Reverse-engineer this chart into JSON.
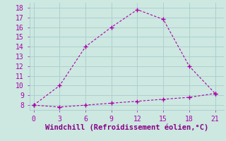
{
  "line1_x": [
    0,
    3,
    6,
    9,
    12,
    15,
    18,
    21
  ],
  "line1_y": [
    8,
    10,
    14,
    16,
    17.8,
    16.8,
    12,
    9.2
  ],
  "line2_x": [
    0,
    3,
    6,
    9,
    12,
    15,
    18,
    21
  ],
  "line2_y": [
    8,
    7.8,
    8.0,
    8.2,
    8.4,
    8.6,
    8.8,
    9.2
  ],
  "line_color": "#aa00aa",
  "bg_color": "#cce8e0",
  "grid_color": "#aacccc",
  "xlabel": "Windchill (Refroidissement éolien,°C)",
  "xlabel_color": "#880088",
  "xlabel_fontsize": 7.5,
  "xticks": [
    0,
    3,
    6,
    9,
    12,
    15,
    18,
    21
  ],
  "yticks": [
    8,
    9,
    10,
    11,
    12,
    13,
    14,
    15,
    16,
    17,
    18
  ],
  "ylim": [
    7.5,
    18.5
  ],
  "xlim": [
    -0.5,
    22
  ],
  "tick_fontsize": 7,
  "marker": "+"
}
